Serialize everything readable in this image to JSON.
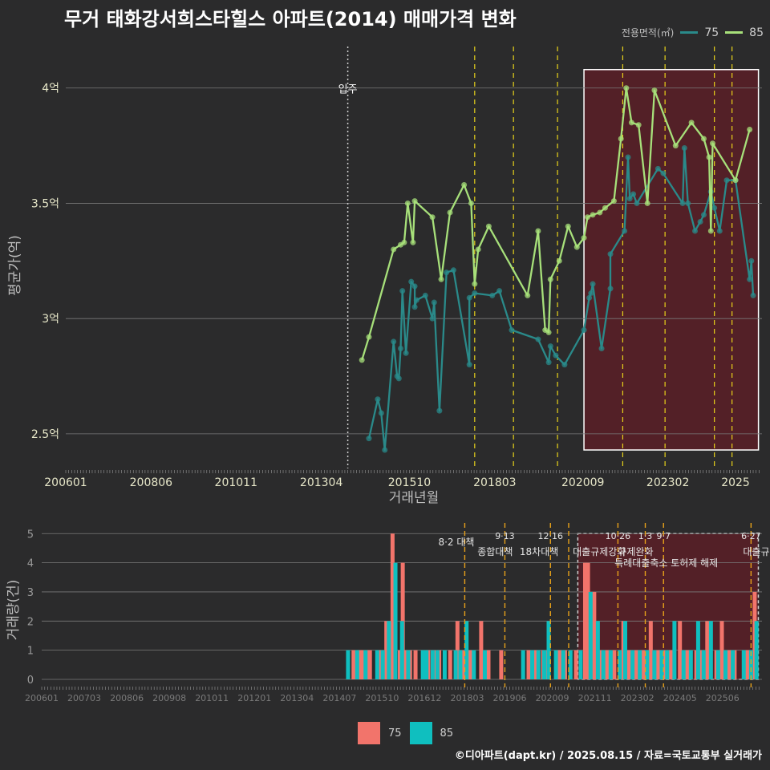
{
  "title": "무거 태화강서희스타힐스 아파트(2014) 매매가격 변화",
  "legend": {
    "title": "전용면적(㎡)",
    "items": [
      {
        "label": "75",
        "color": "#2a8a8a"
      },
      {
        "label": "85",
        "color": "#a7e07a"
      }
    ]
  },
  "caption": "©디아파트(dapt.kr) / 2025.08.15 / 자료=국토교통부 실거래가",
  "colors": {
    "grid": "#7a7a7a",
    "policy_line": "#e8d21a",
    "policy_line_bottom": "#e8a21a",
    "highlight_fill": "#5a1f27",
    "bar75": "#f2746b",
    "bar85": "#0fbfbf"
  },
  "chart_data": [
    {
      "type": "line",
      "ylabel": "평균가(억)",
      "xlabel": "거래년월",
      "x_ticks": [
        "200601",
        "200806",
        "201011",
        "201304",
        "201510",
        "201803",
        "202009",
        "202302",
        "2025"
      ],
      "y_ticks": [
        "2.5억",
        "3억",
        "3.5억",
        "4억"
      ],
      "ylim": [
        2.35,
        4.18
      ],
      "xlim": [
        2006.0,
        2025.75
      ],
      "annotations": [
        {
          "label": "입주",
          "x": 2014.0
        }
      ],
      "policy_lines": [
        2017.6,
        2018.7,
        2019.95,
        2021.8,
        2023.0,
        2024.4,
        2024.9
      ],
      "highlight_range": [
        2020.7,
        2025.65
      ],
      "series": [
        {
          "name": "75",
          "points": [
            [
              2014.6,
              2.48
            ],
            [
              2014.85,
              2.65
            ],
            [
              2014.95,
              2.59
            ],
            [
              2015.05,
              2.43
            ],
            [
              2015.3,
              2.9
            ],
            [
              2015.4,
              2.75
            ],
            [
              2015.45,
              2.74
            ],
            [
              2015.5,
              2.87
            ],
            [
              2015.55,
              3.12
            ],
            [
              2015.65,
              2.85
            ],
            [
              2015.8,
              3.16
            ],
            [
              2015.9,
              3.14
            ],
            [
              2015.9,
              3.05
            ],
            [
              2015.95,
              3.08
            ],
            [
              2016.2,
              3.1
            ],
            [
              2016.4,
              3.0
            ],
            [
              2016.45,
              3.07
            ],
            [
              2016.6,
              2.6
            ],
            [
              2016.8,
              3.2
            ],
            [
              2017.0,
              3.21
            ],
            [
              2017.45,
              2.8
            ],
            [
              2017.45,
              3.09
            ],
            [
              2017.6,
              3.11
            ],
            [
              2018.1,
              3.1
            ],
            [
              2018.3,
              3.12
            ],
            [
              2018.65,
              2.95
            ],
            [
              2019.4,
              2.91
            ],
            [
              2019.7,
              2.81
            ],
            [
              2019.75,
              2.88
            ],
            [
              2019.9,
              2.84
            ],
            [
              2020.15,
              2.8
            ],
            [
              2020.7,
              2.95
            ],
            [
              2020.85,
              3.09
            ],
            [
              2020.9,
              3.11
            ],
            [
              2020.95,
              3.15
            ],
            [
              2021.2,
              2.87
            ],
            [
              2021.45,
              3.13
            ],
            [
              2021.45,
              3.28
            ],
            [
              2021.85,
              3.38
            ],
            [
              2021.95,
              3.7
            ],
            [
              2022.0,
              3.52
            ],
            [
              2022.1,
              3.54
            ],
            [
              2022.2,
              3.5
            ],
            [
              2022.8,
              3.65
            ],
            [
              2022.95,
              3.63
            ],
            [
              2023.5,
              3.5
            ],
            [
              2023.55,
              3.74
            ],
            [
              2023.65,
              3.5
            ],
            [
              2023.85,
              3.38
            ],
            [
              2024.0,
              3.42
            ],
            [
              2024.1,
              3.45
            ],
            [
              2024.3,
              3.55
            ],
            [
              2024.4,
              3.48
            ],
            [
              2024.55,
              3.38
            ],
            [
              2024.75,
              3.6
            ],
            [
              2025.0,
              3.6
            ],
            [
              2025.4,
              3.17
            ],
            [
              2025.45,
              3.25
            ],
            [
              2025.5,
              3.1
            ]
          ]
        },
        {
          "name": "85",
          "points": [
            [
              2014.4,
              2.82
            ],
            [
              2014.6,
              2.92
            ],
            [
              2015.3,
              3.3
            ],
            [
              2015.5,
              3.32
            ],
            [
              2015.6,
              3.33
            ],
            [
              2015.7,
              3.5
            ],
            [
              2015.85,
              3.33
            ],
            [
              2015.9,
              3.51
            ],
            [
              2016.4,
              3.44
            ],
            [
              2016.65,
              3.17
            ],
            [
              2016.9,
              3.46
            ],
            [
              2017.3,
              3.58
            ],
            [
              2017.5,
              3.5
            ],
            [
              2017.6,
              3.15
            ],
            [
              2017.7,
              3.3
            ],
            [
              2018.0,
              3.4
            ],
            [
              2019.1,
              3.1
            ],
            [
              2019.4,
              3.38
            ],
            [
              2019.6,
              2.95
            ],
            [
              2019.7,
              2.94
            ],
            [
              2019.75,
              3.17
            ],
            [
              2020.0,
              3.25
            ],
            [
              2020.25,
              3.4
            ],
            [
              2020.5,
              3.31
            ],
            [
              2020.7,
              3.35
            ],
            [
              2020.8,
              3.44
            ],
            [
              2020.95,
              3.45
            ],
            [
              2021.15,
              3.46
            ],
            [
              2021.3,
              3.48
            ],
            [
              2021.55,
              3.51
            ],
            [
              2021.75,
              3.78
            ],
            [
              2021.9,
              4.0
            ],
            [
              2022.05,
              3.85
            ],
            [
              2022.25,
              3.84
            ],
            [
              2022.5,
              3.5
            ],
            [
              2022.7,
              3.99
            ],
            [
              2023.3,
              3.75
            ],
            [
              2023.75,
              3.85
            ],
            [
              2024.1,
              3.78
            ],
            [
              2024.25,
              3.7
            ],
            [
              2024.3,
              3.38
            ],
            [
              2024.35,
              3.76
            ],
            [
              2025.0,
              3.6
            ],
            [
              2025.4,
              3.82
            ]
          ]
        }
      ]
    },
    {
      "type": "bar",
      "ylabel": "거래량(건)",
      "x_ticks": [
        "200601",
        "200703",
        "200806",
        "200908",
        "201011",
        "201201",
        "201304",
        "201407",
        "201510",
        "201612",
        "201803",
        "201906",
        "202009",
        "202111",
        "202302",
        "202405",
        "202506"
      ],
      "y_ticks": [
        "0",
        "1",
        "2",
        "3",
        "4",
        "5"
      ],
      "ylim": [
        0,
        5.2
      ],
      "highlight_range": [
        2020.7,
        2025.65
      ],
      "policy_events": [
        {
          "x": 2017.6,
          "label": "8·2 대책",
          "date": ""
        },
        {
          "x": 2018.7,
          "label": "종합대책",
          "date": "9·13"
        },
        {
          "x": 2019.95,
          "label": "18차대책",
          "date": "12·16"
        },
        {
          "x": 2020.45,
          "label": "",
          "date": ""
        },
        {
          "x": 2021.8,
          "label": "대출규제강화",
          "date": "10·26"
        },
        {
          "x": 2022.55,
          "label": "규제완화",
          "date": "1·3"
        },
        {
          "x": 2023.05,
          "label": "특례대출축소 토허제 해제",
          "date": "9·7"
        },
        {
          "x": 2025.45,
          "label": "대출규",
          "date": "6·27"
        }
      ],
      "series": [
        {
          "name": "75",
          "bars": [
            [
              2014.55,
              1
            ],
            [
              2014.72,
              1
            ],
            [
              2014.8,
              1
            ],
            [
              2014.9,
              1
            ],
            [
              2015.0,
              1
            ],
            [
              2015.3,
              1
            ],
            [
              2015.45,
              2
            ],
            [
              2015.62,
              5
            ],
            [
              2015.82,
              1
            ],
            [
              2015.9,
              4
            ],
            [
              2016.0,
              1
            ],
            [
              2016.1,
              1
            ],
            [
              2016.25,
              1
            ],
            [
              2016.6,
              1
            ],
            [
              2016.75,
              1
            ],
            [
              2016.9,
              1
            ],
            [
              2017.2,
              1
            ],
            [
              2017.4,
              2
            ],
            [
              2017.55,
              1
            ],
            [
              2017.75,
              1
            ],
            [
              2018.05,
              2
            ],
            [
              2018.25,
              1
            ],
            [
              2018.6,
              1
            ],
            [
              2019.35,
              1
            ],
            [
              2019.55,
              1
            ],
            [
              2019.75,
              1
            ],
            [
              2019.85,
              1
            ],
            [
              2020.2,
              1
            ],
            [
              2020.35,
              1
            ],
            [
              2020.65,
              1
            ],
            [
              2020.9,
              4
            ],
            [
              2020.98,
              4
            ],
            [
              2021.15,
              3
            ],
            [
              2021.35,
              1
            ],
            [
              2021.5,
              1
            ],
            [
              2021.7,
              1
            ],
            [
              2021.95,
              2
            ],
            [
              2022.05,
              1
            ],
            [
              2022.15,
              1
            ],
            [
              2022.3,
              1
            ],
            [
              2022.5,
              1
            ],
            [
              2022.7,
              2
            ],
            [
              2022.9,
              1
            ],
            [
              2023.05,
              1
            ],
            [
              2023.25,
              1
            ],
            [
              2023.5,
              2
            ],
            [
              2023.7,
              1
            ],
            [
              2023.95,
              1
            ],
            [
              2024.1,
              1
            ],
            [
              2024.25,
              2
            ],
            [
              2024.5,
              1
            ],
            [
              2024.65,
              2
            ],
            [
              2024.85,
              1
            ],
            [
              2025.0,
              1
            ],
            [
              2025.35,
              1
            ],
            [
              2025.55,
              3
            ]
          ]
        },
        {
          "name": "85",
          "bars": [
            [
              2014.4,
              1
            ],
            [
              2014.65,
              1
            ],
            [
              2014.88,
              1
            ],
            [
              2015.2,
              1
            ],
            [
              2015.35,
              1
            ],
            [
              2015.52,
              2
            ],
            [
              2015.7,
              4
            ],
            [
              2015.88,
              2
            ],
            [
              2016.05,
              1
            ],
            [
              2016.45,
              1
            ],
            [
              2016.55,
              1
            ],
            [
              2016.72,
              1
            ],
            [
              2016.85,
              1
            ],
            [
              2017.05,
              1
            ],
            [
              2017.35,
              1
            ],
            [
              2017.48,
              1
            ],
            [
              2017.65,
              2
            ],
            [
              2017.85,
              1
            ],
            [
              2018.15,
              1
            ],
            [
              2019.2,
              1
            ],
            [
              2019.45,
              1
            ],
            [
              2019.62,
              1
            ],
            [
              2019.78,
              1
            ],
            [
              2019.9,
              2
            ],
            [
              2020.1,
              1
            ],
            [
              2020.3,
              1
            ],
            [
              2020.5,
              1
            ],
            [
              2020.78,
              1
            ],
            [
              2021.05,
              3
            ],
            [
              2021.25,
              2
            ],
            [
              2021.4,
              1
            ],
            [
              2021.6,
              1
            ],
            [
              2021.85,
              1
            ],
            [
              2022.0,
              2
            ],
            [
              2022.2,
              1
            ],
            [
              2022.4,
              1
            ],
            [
              2022.6,
              1
            ],
            [
              2022.8,
              1
            ],
            [
              2023.0,
              1
            ],
            [
              2023.15,
              1
            ],
            [
              2023.35,
              2
            ],
            [
              2023.6,
              1
            ],
            [
              2023.8,
              1
            ],
            [
              2024.0,
              2
            ],
            [
              2024.15,
              1
            ],
            [
              2024.35,
              2
            ],
            [
              2024.55,
              1
            ],
            [
              2024.75,
              1
            ],
            [
              2024.95,
              1
            ],
            [
              2025.25,
              1
            ],
            [
              2025.45,
              1
            ],
            [
              2025.6,
              2
            ]
          ]
        }
      ]
    }
  ]
}
